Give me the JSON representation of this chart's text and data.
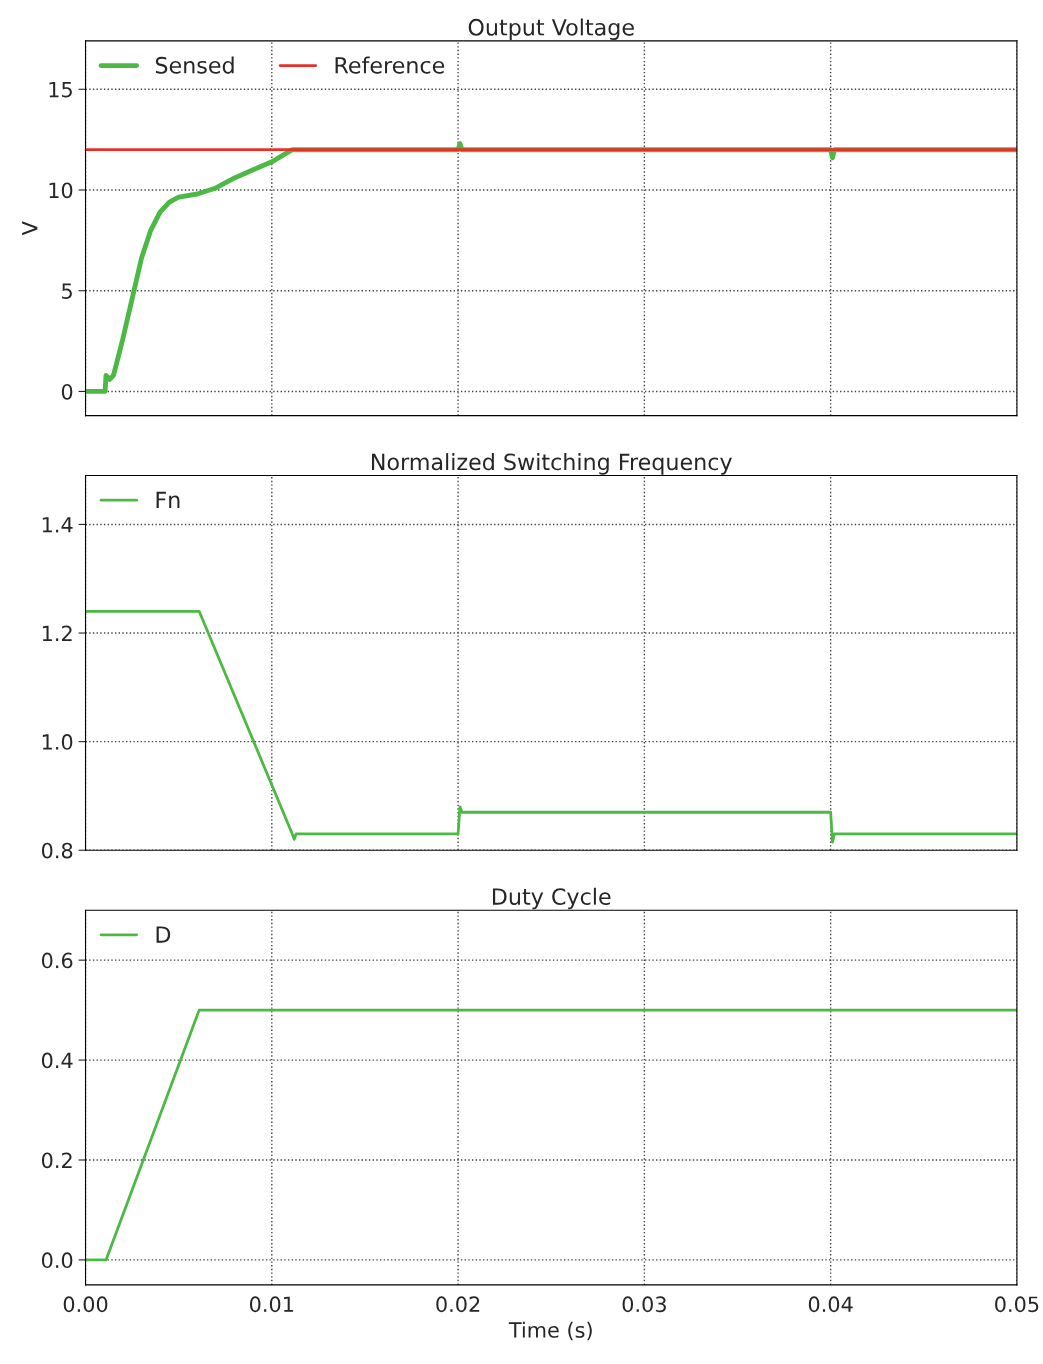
{
  "chart_data": [
    {
      "type": "line",
      "title": "Output Voltage",
      "ylabel": "V",
      "xlim": [
        0,
        0.05
      ],
      "xticks": [
        0,
        0.01,
        0.02,
        0.03,
        0.04,
        0.05
      ],
      "ylim": [
        -1.2,
        17.4
      ],
      "yticks": [
        0,
        5,
        10,
        15
      ],
      "grid": true,
      "legend": "top left",
      "tick_labels": "y",
      "series": [
        {
          "name": "Sensed",
          "color": "#4cb944",
          "x": [
            0,
            0.00105,
            0.0011,
            0.0013,
            0.0015,
            0.002,
            0.0026,
            0.003,
            0.0035,
            0.004,
            0.0045,
            0.005,
            0.006,
            0.007,
            0.008,
            0.009,
            0.01,
            0.0111,
            0.02,
            0.0201,
            0.0202,
            0.04,
            0.0401,
            0.0402,
            0.05
          ],
          "values": [
            0,
            0,
            0.8,
            0.6,
            0.8,
            2.6,
            5,
            6.6,
            8.0,
            8.9,
            9.4,
            9.65,
            9.8,
            10.1,
            10.6,
            11.0,
            11.4,
            12,
            12,
            12.3,
            12,
            12,
            11.6,
            12,
            12
          ]
        },
        {
          "name": "Reference",
          "color": "#e8302a",
          "x": [
            0,
            0.05
          ],
          "values": [
            12,
            12
          ]
        }
      ]
    },
    {
      "type": "line",
      "title": "Normalized Switching Frequency",
      "xlim": [
        0,
        0.05
      ],
      "xticks": [
        0,
        0.01,
        0.02,
        0.03,
        0.04,
        0.05
      ],
      "ylim": [
        0.8,
        1.49
      ],
      "yticks": [
        {
          "value": 0.8,
          "label": "0.8"
        },
        {
          "value": 1.0,
          "label": "1.0"
        },
        {
          "value": 1.2,
          "label": "1.2"
        },
        {
          "value": 1.4,
          "label": "1.4"
        }
      ],
      "grid": true,
      "legend": "top left",
      "tick_labels": "y",
      "series": [
        {
          "name": "Fn",
          "color": "#4cb944",
          "x": [
            0,
            0.0061,
            0.0111,
            0.0112,
            0.0113,
            0.02,
            0.0201,
            0.0202,
            0.04,
            0.0401,
            0.0402,
            0.05
          ],
          "values": [
            1.24,
            1.24,
            0.83,
            0.82,
            0.83,
            0.83,
            0.88,
            0.87,
            0.87,
            0.815,
            0.83,
            0.83
          ]
        }
      ]
    },
    {
      "type": "line",
      "title": "Duty Cycle",
      "xlabel": "Time (s)",
      "xlim": [
        0,
        0.05
      ],
      "xticks": [
        {
          "value": 0,
          "label": "0.00"
        },
        {
          "value": 0.01,
          "label": "0.01"
        },
        {
          "value": 0.02,
          "label": "0.02"
        },
        {
          "value": 0.03,
          "label": "0.03"
        },
        {
          "value": 0.04,
          "label": "0.04"
        },
        {
          "value": 0.05,
          "label": "0.05"
        }
      ],
      "ylim": [
        -0.05,
        0.7
      ],
      "yticks": [
        {
          "value": 0,
          "label": "0.0"
        },
        {
          "value": 0.2,
          "label": "0.2"
        },
        {
          "value": 0.4,
          "label": "0.4"
        },
        {
          "value": 0.6,
          "label": "0.6"
        }
      ],
      "grid": true,
      "legend": "top left",
      "series": [
        {
          "name": "D",
          "color": "#4cb944",
          "x": [
            0,
            0.0011,
            0.0061,
            0.05
          ],
          "values": [
            0,
            0,
            0.5,
            0.5
          ]
        }
      ]
    }
  ]
}
